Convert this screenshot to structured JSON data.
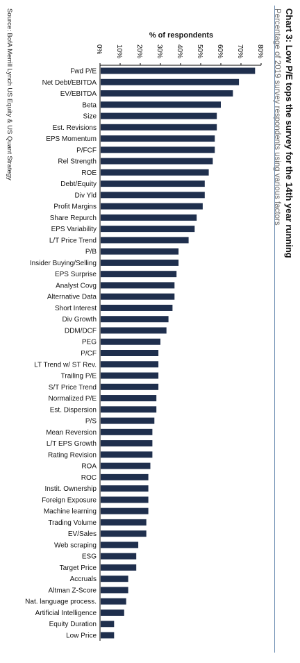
{
  "title": "Chart 3: Low P/E tops the survey for the 14th year running",
  "subtitle": "Percentage of 2019 survey respondents using various factors",
  "source": "Source: BofA Merrill Lynch US Equity & US Quant Strategy",
  "colors": {
    "bar": "#1f2f4d",
    "axis": "#000000",
    "rule": "#6f8fb3"
  },
  "chart_data": {
    "type": "bar",
    "orientation": "horizontal",
    "rotated_page_degrees": 90,
    "title": "Chart 3: Low P/E tops the survey for the 14th year running",
    "subtitle": "Percentage of 2019 survey respondents using various factors",
    "xlabel": "% of respondents",
    "xlim": [
      0,
      80
    ],
    "ticks": [
      "0%",
      "10%",
      "20%",
      "30%",
      "40%",
      "50%",
      "60%",
      "70%",
      "80%"
    ],
    "grid": false,
    "categories": [
      "Fwd P/E",
      "Net Debt/EBITDA",
      "EV/EBITDA",
      "Beta",
      "Size",
      "Est. Revisions",
      "EPS Momentum",
      "P/FCF",
      "Rel Strength",
      "ROE",
      "Debt/Equity",
      "Div Yld",
      "Profit Margins",
      "Share Repurch",
      "EPS Variability",
      "L/T Price Trend",
      "P/B",
      "Insider Buying/Selling",
      "EPS Surprise",
      "Analyst Covg",
      "Alternative Data",
      "Short Interest",
      "Div Growth",
      "DDM/DCF",
      "PEG",
      "P/CF",
      "LT Trend w/ ST Rev.",
      "Trailing P/E",
      "S/T Price Trend",
      "Normalized P/E",
      "Est. Dispersion",
      "P/S",
      "Mean Reversion",
      "L/T EPS Growth",
      "Rating Revision",
      "ROA",
      "ROC",
      "Instit. Ownership",
      "Foreign Exposure",
      "Machine learning",
      "Trading Volume",
      "EV/Sales",
      "Web scraping",
      "ESG",
      "Target Price",
      "Accruals",
      "Altman Z-Score",
      "Nat. language process.",
      "Artificial Intelligence",
      "Equity Duration",
      "Low Price"
    ],
    "values": [
      77,
      69,
      66,
      60,
      58,
      58,
      57,
      57,
      56,
      54,
      52,
      52,
      51,
      48,
      47,
      44,
      39,
      39,
      38,
      37,
      37,
      36,
      34,
      33,
      30,
      29,
      29,
      29,
      29,
      28,
      28,
      27,
      26,
      26,
      26,
      25,
      24,
      24,
      24,
      24,
      23,
      23,
      19,
      18,
      18,
      14,
      14,
      13,
      12,
      7,
      7
    ]
  }
}
